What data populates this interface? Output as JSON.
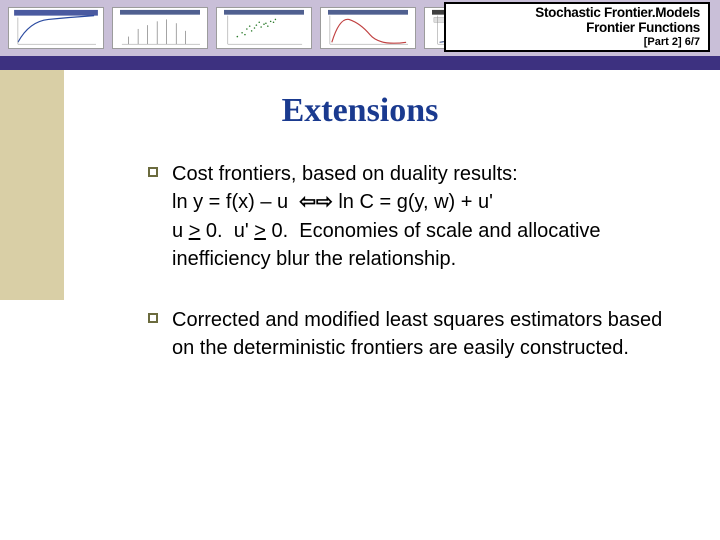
{
  "header": {
    "line1": "Stochastic Frontier.Models",
    "line2": "Frontier Functions",
    "line3": "[Part 2]   6/7",
    "background_color": "#c9bfd8",
    "label_bg": "#ffffff",
    "label_border": "#000000",
    "font_size_main": 13.5,
    "font_size_sub": 11,
    "thumbnails": [
      {
        "type": "curve",
        "stroke": "#2a4aa0"
      },
      {
        "type": "hist",
        "stroke": "#303030"
      },
      {
        "type": "scatter",
        "stroke": "#2a7a2a"
      },
      {
        "type": "density",
        "stroke": "#c04040"
      },
      {
        "type": "curve2",
        "stroke": "#2a4aa0"
      }
    ]
  },
  "purple_strip_color": "#3d3180",
  "side_tan_color": "#d9cfa6",
  "title": {
    "text": "Extensions",
    "color": "#1a3a8f",
    "font_size": 34
  },
  "bullets": [
    {
      "text_html": "Cost frontiers, based on duality results:<br>ln y = f(x) – u &nbsp;<span class=\"arrow\">&#8678;&#8680;</span> ln C = g(y, w) + u'<br>u <u>&gt;</u> 0.&nbsp; u' <u>&gt;</u> 0.&nbsp; Economies of scale and allocative inefficiency blur the relationship."
    },
    {
      "text_html": "Corrected and modified least squares estimators based on the deterministic frontiers are easily constructed."
    }
  ],
  "bullet_marker_color": "#6b6b3e",
  "body_font_size": 20
}
